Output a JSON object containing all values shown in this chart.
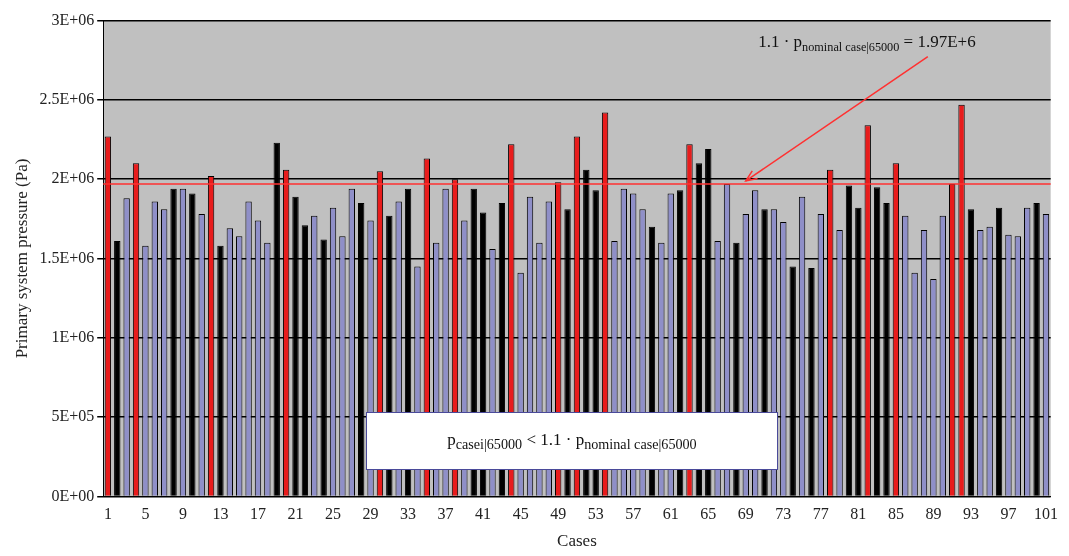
{
  "chart_data": {
    "type": "bar",
    "xlabel": "Cases",
    "ylabel": "Primary system pressure (Pa)",
    "categories": [
      "1",
      null,
      null,
      null,
      "5",
      null,
      null,
      null,
      "9",
      null,
      null,
      null,
      "13",
      null,
      null,
      null,
      "17",
      null,
      null,
      null,
      "21",
      null,
      null,
      null,
      "25",
      null,
      null,
      null,
      "29",
      null,
      null,
      null,
      "33",
      null,
      null,
      null,
      "37",
      null,
      null,
      null,
      "41",
      null,
      null,
      null,
      "45",
      null,
      null,
      null,
      "49",
      null,
      null,
      null,
      "53",
      null,
      null,
      null,
      "57",
      null,
      null,
      null,
      "61",
      null,
      null,
      null,
      "65",
      null,
      null,
      null,
      "69",
      null,
      null,
      null,
      "73",
      null,
      null,
      null,
      "77",
      null,
      null,
      null,
      "81",
      null,
      null,
      null,
      "85",
      null,
      null,
      null,
      "89",
      null,
      null,
      null,
      "93",
      null,
      null,
      null,
      "97",
      null,
      null,
      null,
      "101"
    ],
    "values": [
      2270000,
      1610000,
      1880000,
      2100000,
      1580000,
      1860000,
      1810000,
      1940000,
      1940000,
      1910000,
      1780000,
      2020000,
      1580000,
      1690000,
      1640000,
      1860000,
      1740000,
      1600000,
      2230000,
      2060000,
      1890000,
      1710000,
      1770000,
      1620000,
      1820000,
      1640000,
      1940000,
      1850000,
      1740000,
      2050000,
      1770000,
      1860000,
      1940000,
      1450000,
      2130000,
      1600000,
      1940000,
      2000000,
      1740000,
      1940000,
      1790000,
      1560000,
      1850000,
      2220000,
      1410000,
      1890000,
      1600000,
      1860000,
      1980000,
      1810000,
      2270000,
      2060000,
      1930000,
      2420000,
      1610000,
      1940000,
      1910000,
      1810000,
      1700000,
      1600000,
      1910000,
      1930000,
      2220000,
      2100000,
      2190000,
      1610000,
      1970000,
      1600000,
      1780000,
      1930000,
      1810000,
      1810000,
      1730000,
      1450000,
      1890000,
      1440000,
      1780000,
      2060000,
      1680000,
      1960000,
      1820000,
      2340000,
      1950000,
      1850000,
      2100000,
      1770000,
      1410000,
      1680000,
      1370000,
      1770000,
      1970000,
      2470000,
      1810000,
      1680000,
      1700000,
      1820000,
      1650000,
      1640000,
      1820000,
      1850000,
      1780000
    ],
    "colors": [
      "#e81c1c",
      "#000000",
      "#8f8fc8",
      "#e81c1c",
      "#8f8fc8",
      "#8f8fc8",
      "#8f8fc8",
      "#000000",
      "#8f8fc8",
      "#000000",
      "#8f8fc8",
      "#e81c1c",
      "#000000",
      "#8f8fc8",
      "#8f8fc8",
      "#8f8fc8",
      "#8f8fc8",
      "#8f8fc8",
      "#000000",
      "#e81c1c",
      "#000000",
      "#000000",
      "#8f8fc8",
      "#000000",
      "#8f8fc8",
      "#8f8fc8",
      "#8f8fc8",
      "#000000",
      "#8f8fc8",
      "#e81c1c",
      "#000000",
      "#8f8fc8",
      "#000000",
      "#8f8fc8",
      "#e81c1c",
      "#8f8fc8",
      "#8f8fc8",
      "#e81c1c",
      "#8f8fc8",
      "#000000",
      "#000000",
      "#8f8fc8",
      "#000000",
      "#e81c1c",
      "#8f8fc8",
      "#8f8fc8",
      "#8f8fc8",
      "#8f8fc8",
      "#e81c1c",
      "#000000",
      "#e81c1c",
      "#000000",
      "#000000",
      "#e81c1c",
      "#8f8fc8",
      "#8f8fc8",
      "#8f8fc8",
      "#8f8fc8",
      "#000000",
      "#8f8fc8",
      "#8f8fc8",
      "#000000",
      "#e81c1c",
      "#000000",
      "#000000",
      "#8f8fc8",
      "#8f8fc8",
      "#000000",
      "#8f8fc8",
      "#8f8fc8",
      "#000000",
      "#8f8fc8",
      "#8f8fc8",
      "#000000",
      "#8f8fc8",
      "#000000",
      "#8f8fc8",
      "#e81c1c",
      "#8f8fc8",
      "#000000",
      "#000000",
      "#e81c1c",
      "#000000",
      "#000000",
      "#e81c1c",
      "#8f8fc8",
      "#8f8fc8",
      "#8f8fc8",
      "#8f8fc8",
      "#8f8fc8",
      "#e81c1c",
      "#e81c1c",
      "#000000",
      "#8f8fc8",
      "#8f8fc8",
      "#000000",
      "#8f8fc8",
      "#8f8fc8",
      "#8f8fc8",
      "#000000",
      "#8f8fc8"
    ],
    "ylim": [
      0,
      3000000
    ],
    "yticks": [
      {
        "value": 0,
        "label": "0E+00"
      },
      {
        "value": 500000,
        "label": "5E+05"
      },
      {
        "value": 1000000,
        "label": "1E+06"
      },
      {
        "value": 1500000,
        "label": "1.5E+06"
      },
      {
        "value": 2000000,
        "label": "2E+06"
      },
      {
        "value": 2500000,
        "label": "2.5E+06"
      },
      {
        "value": 3000000,
        "label": "3E+06"
      }
    ],
    "grid": "y",
    "legend": false,
    "ref_lines": [
      {
        "axis": "y",
        "value": 1970000,
        "color": "#ff3030"
      }
    ],
    "annotations": [
      {
        "text": "1.1 · p$_{nominal case|65000}$ = 1.97E+6",
        "x": "69",
        "y": 1970000
      },
      "p$_{casei|65000}$ < 1.1 · p$_{nominal case|65000}$"
    ]
  }
}
